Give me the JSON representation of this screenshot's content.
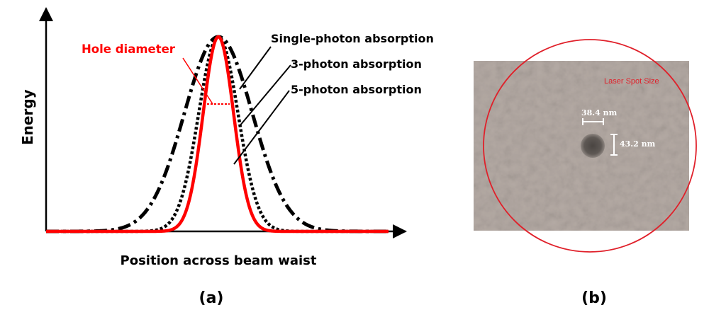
{
  "panel_a": {
    "y_axis_label": "Energy",
    "x_axis_label": "Position across beam waist",
    "panel_label": "(a)",
    "hole_diameter_label": "Hole diameter",
    "curves": [
      {
        "name": "Single-photon absorption",
        "order": 1,
        "style": "dash-dot",
        "color": "#000000"
      },
      {
        "name": "3-photon absorption",
        "order": 3,
        "style": "dotted",
        "color": "#000000"
      },
      {
        "name": "5-photon absorption",
        "order": 5,
        "style": "solid",
        "color": "#ff0000"
      }
    ],
    "colors": {
      "curve_black": "#000000",
      "curve_red": "#ff0000",
      "axis": "#000000"
    }
  },
  "panel_b": {
    "panel_label": "(b)",
    "laser_spot_label": "Laser Spot Size",
    "measurement_horizontal": "38.4 nm",
    "measurement_vertical": "43.2 nm",
    "colors": {
      "sem_background": "#b4aaa4",
      "circle": "#e0202a",
      "hole": "#5a5450",
      "measure": "#ffffff"
    }
  }
}
